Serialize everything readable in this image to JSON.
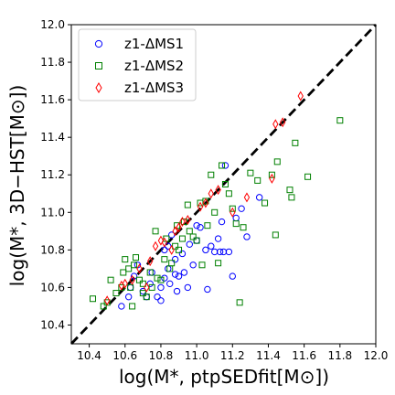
{
  "chart_data": {
    "type": "scatter",
    "title": "",
    "xlabel": "log(M*, ptpSEDfit[M⊙])",
    "ylabel": "log(M*, 3D−HST[M⊙])",
    "xlim": [
      10.3,
      12.0
    ],
    "ylim": [
      10.3,
      12.0
    ],
    "xticks": [
      "10.4",
      "10.6",
      "10.8",
      "11.0",
      "11.2",
      "11.4",
      "11.6",
      "11.8",
      "12.0"
    ],
    "yticks": [
      "10.4",
      "10.6",
      "10.8",
      "11.0",
      "11.2",
      "11.4",
      "11.6",
      "11.8",
      "12.0"
    ],
    "grid": false,
    "legend_position": "top-left",
    "reference_line": {
      "style": "dashed",
      "color": "#000000",
      "from": [
        10.3,
        10.3
      ],
      "to": [
        12.0,
        12.0
      ]
    },
    "series": [
      {
        "name": "z1-ΔMS1",
        "marker": "circle",
        "color": "#0000ff",
        "points": [
          [
            10.58,
            10.5
          ],
          [
            10.62,
            10.55
          ],
          [
            10.63,
            10.6
          ],
          [
            10.65,
            10.66
          ],
          [
            10.67,
            10.72
          ],
          [
            10.7,
            10.58
          ],
          [
            10.72,
            10.55
          ],
          [
            10.74,
            10.62
          ],
          [
            10.75,
            10.68
          ],
          [
            10.78,
            10.55
          ],
          [
            10.8,
            10.53
          ],
          [
            10.8,
            10.6
          ],
          [
            10.82,
            10.65
          ],
          [
            10.82,
            10.8
          ],
          [
            10.84,
            10.7
          ],
          [
            10.85,
            10.62
          ],
          [
            10.86,
            10.88
          ],
          [
            10.88,
            10.75
          ],
          [
            10.88,
            10.67
          ],
          [
            10.89,
            10.58
          ],
          [
            10.9,
            10.66
          ],
          [
            10.92,
            10.78
          ],
          [
            10.93,
            10.68
          ],
          [
            10.95,
            10.6
          ],
          [
            10.96,
            10.83
          ],
          [
            10.98,
            10.72
          ],
          [
            11.0,
            10.85
          ],
          [
            11.0,
            10.93
          ],
          [
            11.02,
            10.92
          ],
          [
            11.05,
            10.8
          ],
          [
            11.06,
            10.59
          ],
          [
            11.08,
            10.82
          ],
          [
            11.1,
            10.79
          ],
          [
            11.12,
            10.86
          ],
          [
            11.13,
            10.79
          ],
          [
            11.14,
            10.95
          ],
          [
            11.15,
            10.79
          ],
          [
            11.16,
            11.25
          ],
          [
            11.18,
            10.79
          ],
          [
            11.2,
            10.66
          ],
          [
            11.22,
            10.97
          ],
          [
            11.25,
            11.02
          ],
          [
            11.28,
            10.87
          ],
          [
            11.35,
            11.08
          ],
          [
            10.84,
            10.82
          ]
        ]
      },
      {
        "name": "z1-ΔMS2",
        "marker": "square",
        "color": "#008000",
        "points": [
          [
            10.42,
            10.54
          ],
          [
            10.48,
            10.5
          ],
          [
            10.5,
            10.52
          ],
          [
            10.52,
            10.64
          ],
          [
            10.55,
            10.57
          ],
          [
            10.58,
            10.6
          ],
          [
            10.59,
            10.68
          ],
          [
            10.6,
            10.75
          ],
          [
            10.62,
            10.7
          ],
          [
            10.63,
            10.6
          ],
          [
            10.64,
            10.5
          ],
          [
            10.65,
            10.72
          ],
          [
            10.66,
            10.76
          ],
          [
            10.68,
            10.64
          ],
          [
            10.7,
            10.57
          ],
          [
            10.72,
            10.55
          ],
          [
            10.74,
            10.68
          ],
          [
            10.75,
            10.6
          ],
          [
            10.77,
            10.9
          ],
          [
            10.78,
            10.65
          ],
          [
            10.8,
            10.64
          ],
          [
            10.82,
            10.75
          ],
          [
            10.83,
            10.86
          ],
          [
            10.85,
            10.7
          ],
          [
            10.86,
            10.73
          ],
          [
            10.88,
            10.82
          ],
          [
            10.89,
            10.93
          ],
          [
            10.9,
            10.8
          ],
          [
            10.92,
            10.86
          ],
          [
            10.93,
            10.95
          ],
          [
            10.95,
            11.04
          ],
          [
            10.96,
            10.9
          ],
          [
            10.98,
            10.87
          ],
          [
            11.0,
            10.85
          ],
          [
            11.02,
            11.05
          ],
          [
            11.03,
            10.72
          ],
          [
            11.05,
            11.06
          ],
          [
            11.06,
            10.93
          ],
          [
            11.08,
            11.2
          ],
          [
            11.1,
            11.0
          ],
          [
            11.12,
            10.73
          ],
          [
            11.14,
            11.25
          ],
          [
            11.16,
            11.15
          ],
          [
            11.18,
            11.1
          ],
          [
            11.2,
            11.02
          ],
          [
            11.22,
            10.94
          ],
          [
            11.24,
            10.52
          ],
          [
            11.26,
            10.92
          ],
          [
            11.3,
            11.21
          ],
          [
            11.34,
            11.17
          ],
          [
            11.38,
            11.05
          ],
          [
            11.42,
            11.2
          ],
          [
            11.44,
            10.88
          ],
          [
            11.45,
            11.27
          ],
          [
            11.52,
            11.12
          ],
          [
            11.53,
            11.08
          ],
          [
            11.55,
            11.37
          ],
          [
            11.62,
            11.19
          ],
          [
            11.8,
            11.49
          ],
          [
            10.7,
            10.62
          ]
        ]
      },
      {
        "name": "z1-ΔMS3",
        "marker": "thin_diamond",
        "color": "#ff0000",
        "points": [
          [
            10.5,
            10.53
          ],
          [
            10.58,
            10.61
          ],
          [
            10.64,
            10.64
          ],
          [
            10.68,
            10.7
          ],
          [
            10.72,
            10.6
          ],
          [
            10.74,
            10.74
          ],
          [
            10.77,
            10.82
          ],
          [
            10.8,
            10.85
          ],
          [
            10.82,
            10.84
          ],
          [
            10.86,
            10.8
          ],
          [
            10.88,
            10.9
          ],
          [
            10.9,
            10.92
          ],
          [
            10.92,
            10.95
          ],
          [
            10.95,
            10.96
          ],
          [
            11.02,
            11.03
          ],
          [
            11.05,
            11.05
          ],
          [
            11.08,
            11.1
          ],
          [
            11.12,
            11.12
          ],
          [
            11.2,
            11.0
          ],
          [
            11.28,
            11.08
          ],
          [
            11.42,
            11.18
          ],
          [
            11.44,
            11.47
          ],
          [
            11.48,
            11.48
          ],
          [
            11.58,
            11.62
          ],
          [
            10.6,
            10.62
          ]
        ]
      }
    ]
  }
}
